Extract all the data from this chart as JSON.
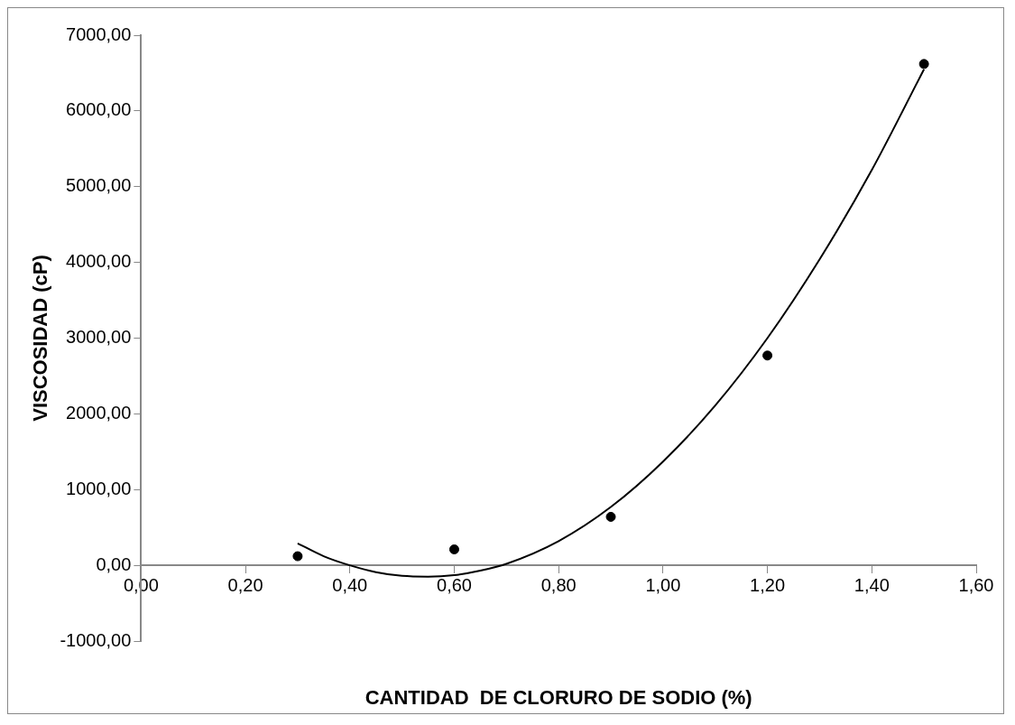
{
  "chart_data": {
    "type": "scatter",
    "xlabel": "CANTIDAD  DE CLORURO DE SODIO (%)",
    "ylabel": "VISCOSIDAD (cP)",
    "x": [
      0.3,
      0.6,
      0.9,
      1.2,
      1.5
    ],
    "series": [
      {
        "color": "#000000",
        "marker": "circle",
        "values": [
          120,
          210,
          640,
          2770,
          6620
        ]
      },
      {
        "type": "line",
        "color": "#000000",
        "marker": "none",
        "x": [
          0.3,
          0.35,
          0.4,
          0.45,
          0.5,
          0.55,
          0.6,
          0.65,
          0.7,
          0.8,
          0.9,
          1.0,
          1.1,
          1.2,
          1.3,
          1.4,
          1.5
        ],
        "values": [
          290,
          120,
          0,
          -90,
          -140,
          -150,
          -130,
          -70,
          20,
          320,
          770,
          1370,
          2110,
          3000,
          4040,
          5220,
          6550
        ]
      }
    ],
    "xlim": [
      0,
      1.6
    ],
    "xticks": [
      {
        "value": 0,
        "label": "0,00"
      },
      {
        "value": 0.2,
        "label": "0,20"
      },
      {
        "value": 0.4,
        "label": "0,40"
      },
      {
        "value": 0.6,
        "label": "0,60"
      },
      {
        "value": 0.8,
        "label": "0,80"
      },
      {
        "value": 1.0,
        "label": "1,00"
      },
      {
        "value": 1.2,
        "label": "1,20"
      },
      {
        "value": 1.4,
        "label": "1,40"
      },
      {
        "value": 1.6,
        "label": "1,60"
      }
    ],
    "ylim": [
      -1000,
      7000
    ],
    "yticks": [
      {
        "value": -1000,
        "label": "-1000,00"
      },
      {
        "value": 0,
        "label": "0,00"
      },
      {
        "value": 1000,
        "label": "1000,00"
      },
      {
        "value": 2000,
        "label": "2000,00"
      },
      {
        "value": 3000,
        "label": "3000,00"
      },
      {
        "value": 4000,
        "label": "4000,00"
      },
      {
        "value": 5000,
        "label": "5000,00"
      },
      {
        "value": 6000,
        "label": "6000,00"
      },
      {
        "value": 7000,
        "label": "7000,00"
      }
    ],
    "grid": false,
    "legend": false
  }
}
